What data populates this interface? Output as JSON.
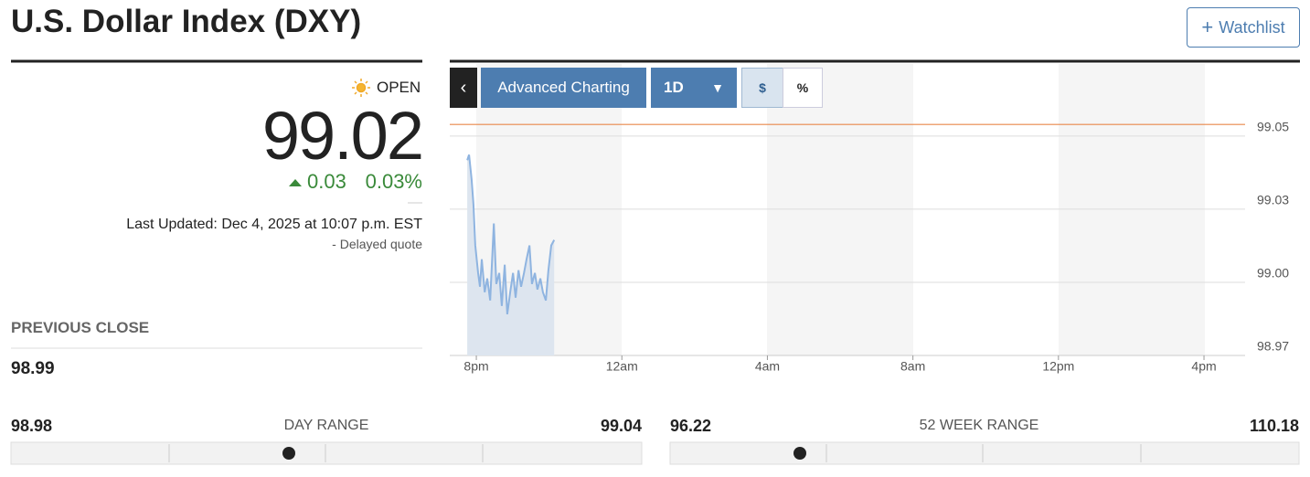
{
  "header": {
    "title": "U.S. Dollar Index (DXY)",
    "watchlist": "Watchlist"
  },
  "quote": {
    "status": "OPEN",
    "price": "99.02",
    "change": "0.03",
    "change_pct": "0.03%",
    "last_updated": "Last Updated: Dec 4, 2025 at 10:07 p.m. EST",
    "delayed": "-  Delayed quote"
  },
  "stats": {
    "previous_close_label": "PREVIOUS CLOSE",
    "previous_close": "98.99",
    "day_range": {
      "low": "98.98",
      "label": "DAY RANGE",
      "high": "99.04"
    },
    "week52_range": {
      "low": "96.22",
      "label": "52 WEEK RANGE",
      "high": "110.18"
    }
  },
  "toolbar": {
    "advanced": "Advanced Charting",
    "interval": "1D",
    "dollar": "$",
    "percent": "%"
  },
  "chart_data": {
    "type": "line",
    "color": "#8fb4e0",
    "area_color": "#dde5ef",
    "reference_line": 99.057,
    "reference_color": "#e8884a",
    "x": [
      -0.25,
      -0.2,
      -0.13,
      -0.08,
      -0.03,
      0.05,
      0.1,
      0.15,
      0.23,
      0.3,
      0.38,
      0.48,
      0.55,
      0.63,
      0.7,
      0.78,
      0.85,
      0.93,
      1.01,
      1.08,
      1.16,
      1.23,
      1.31,
      1.38,
      1.46,
      1.53,
      1.61,
      1.68,
      1.76,
      1.83,
      1.91,
      1.98,
      2.06,
      2.14
    ],
    "values": [
      99.044,
      99.046,
      99.037,
      99.028,
      99.013,
      99.003,
      98.998,
      99.008,
      98.996,
      99.001,
      98.993,
      99.021,
      98.999,
      99.003,
      98.991,
      99.006,
      98.988,
      98.996,
      99.003,
      98.994,
      99.004,
      98.998,
      99.003,
      99.008,
      99.013,
      98.999,
      99.003,
      98.997,
      99.001,
      98.996,
      98.993,
      99.004,
      99.013,
      99.015
    ],
    "xlim": [
      -0.73,
      21.13
    ],
    "xticks": [
      {
        "value": 0,
        "label": "8pm"
      },
      {
        "value": 4,
        "label": "12am"
      },
      {
        "value": 8,
        "label": "4am"
      },
      {
        "value": 12,
        "label": "8am"
      },
      {
        "value": 16,
        "label": "12pm"
      },
      {
        "value": 20,
        "label": "4pm"
      }
    ],
    "ylim": [
      98.973,
      99.079
    ],
    "yticks": [
      {
        "value": 98.973,
        "label": "98.97"
      },
      {
        "value": 98.9996,
        "label": "99.00"
      },
      {
        "value": 99.0262,
        "label": "99.03"
      },
      {
        "value": 99.0528,
        "label": "99.05"
      }
    ],
    "grid": true
  }
}
